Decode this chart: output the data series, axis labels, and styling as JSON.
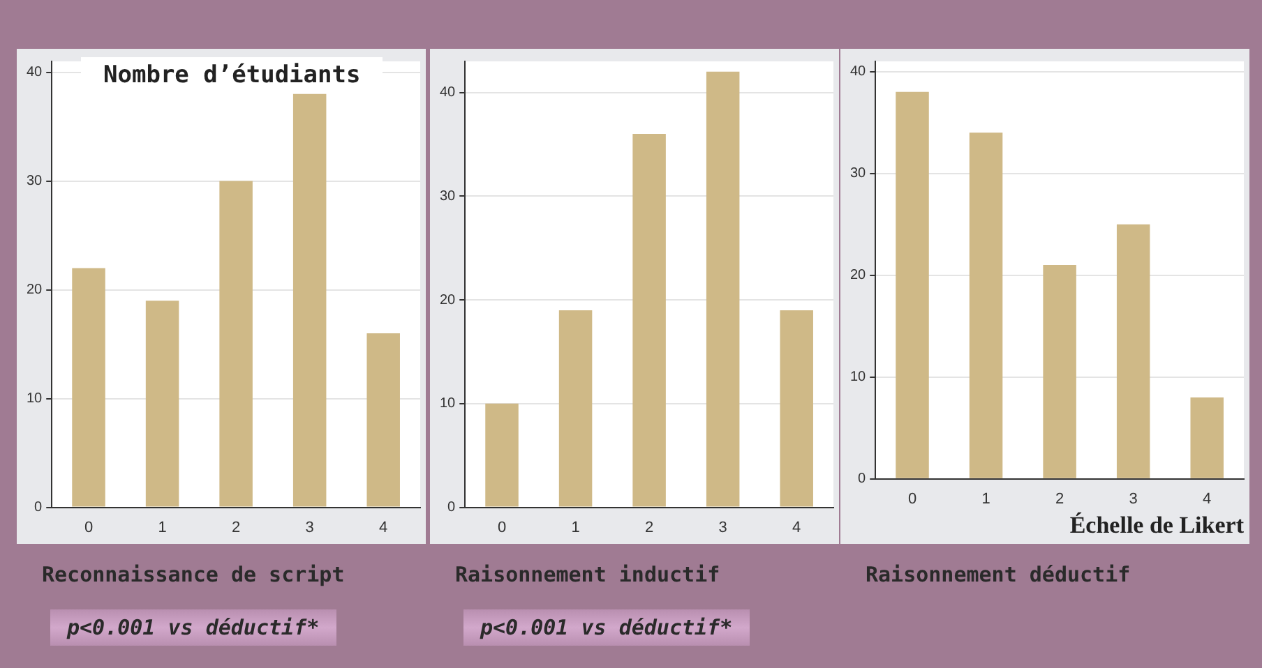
{
  "chart_data": [
    {
      "type": "bar",
      "title": "Reconnaissance de script",
      "ylabel": "Nombre d’étudiants",
      "categories": [
        "0",
        "1",
        "2",
        "3",
        "4"
      ],
      "values": [
        22,
        19,
        30,
        38,
        16
      ],
      "color": "#cfb987",
      "ylim": [
        0,
        41
      ],
      "yticks": [
        0,
        10,
        20,
        30,
        40
      ],
      "grid": "y",
      "annotations": [
        "p<0.001 vs déductif*"
      ]
    },
    {
      "type": "bar",
      "title": "Raisonnement inductif",
      "categories": [
        "0",
        "1",
        "2",
        "3",
        "4"
      ],
      "values": [
        10,
        19,
        36,
        42,
        19
      ],
      "color": "#cfb987",
      "ylim": [
        0,
        43
      ],
      "yticks": [
        0,
        10,
        20,
        30,
        40
      ],
      "grid": "y",
      "annotations": [
        "p<0.001 vs déductif*"
      ]
    },
    {
      "type": "bar",
      "title": "Raisonnement déductif",
      "xlabel": "Échelle de Likert",
      "categories": [
        "0",
        "1",
        "2",
        "3",
        "4"
      ],
      "values": [
        38,
        34,
        21,
        25,
        8
      ],
      "color": "#cfb987",
      "ylim": [
        0,
        41
      ],
      "yticks": [
        0,
        10,
        20,
        30,
        40
      ],
      "grid": "y"
    }
  ]
}
